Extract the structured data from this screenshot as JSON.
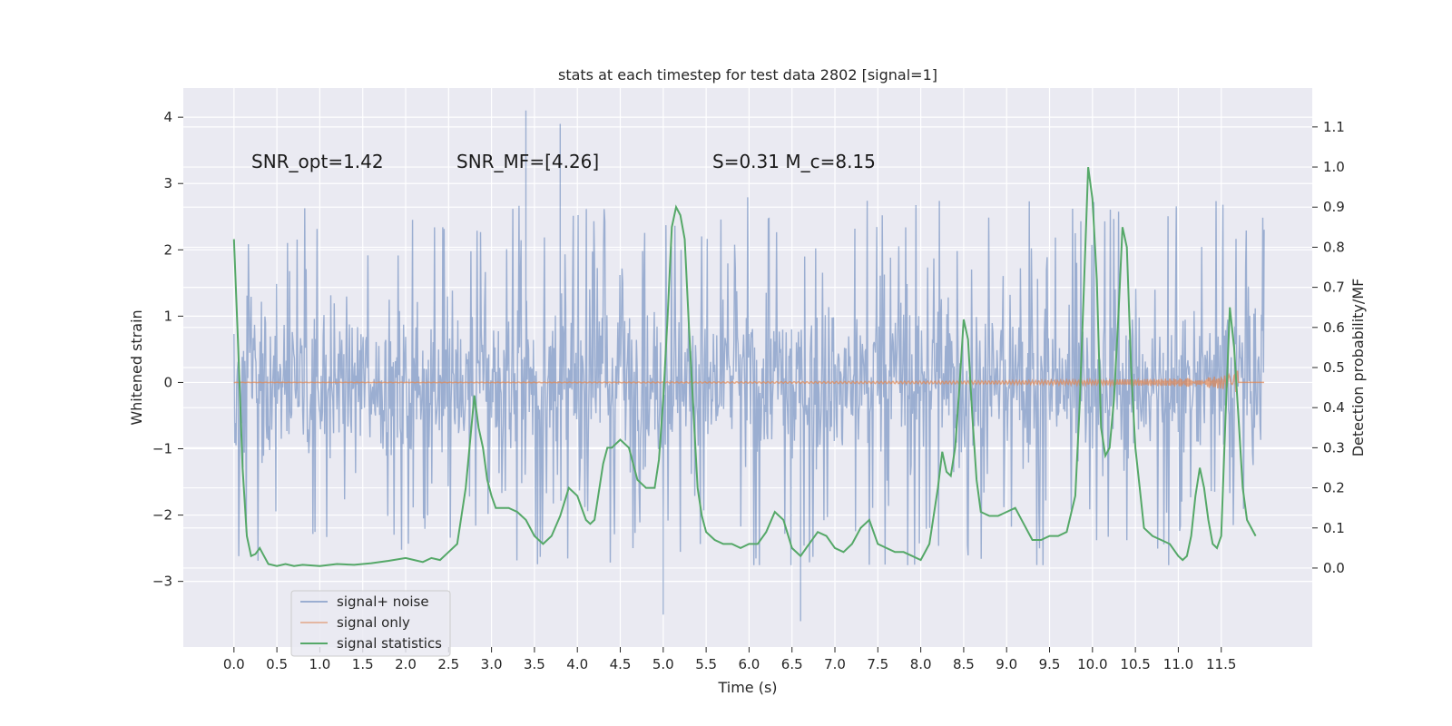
{
  "chart_data": {
    "type": "line",
    "title": "stats at each timestep for test data 2802 [signal=1]",
    "xlabel": "Time (s)",
    "ylabel_left": "Whitened strain",
    "ylabel_right": "Detection probability/MF",
    "xlim": [
      -0.59,
      12.56
    ],
    "ylim_left": [
      -3.99,
      4.44
    ],
    "ylim_right": [
      -0.197,
      1.197
    ],
    "x_ticks": [
      0.0,
      0.5,
      1.0,
      1.5,
      2.0,
      2.5,
      3.0,
      3.5,
      4.0,
      4.5,
      5.0,
      5.5,
      6.0,
      6.5,
      7.0,
      7.5,
      8.0,
      8.5,
      9.0,
      9.5,
      10.0,
      10.5,
      11.0,
      11.5
    ],
    "x_tick_labels": [
      "0.0",
      "0.5",
      "1.0",
      "1.5",
      "2.0",
      "2.5",
      "3.0",
      "3.5",
      "4.0",
      "4.5",
      "5.0",
      "5.5",
      "6.0",
      "6.5",
      "7.0",
      "7.5",
      "8.0",
      "8.5",
      "9.0",
      "9.5",
      "10.0",
      "10.5",
      "11.0",
      "11.5"
    ],
    "y_left_ticks": [
      -3,
      -2,
      -1,
      0,
      1,
      2,
      3,
      4
    ],
    "y_left_tick_labels": [
      "−3",
      "−2",
      "−1",
      "0",
      "1",
      "2",
      "3",
      "4"
    ],
    "y_right_ticks": [
      0.0,
      0.1,
      0.2,
      0.3,
      0.4,
      0.5,
      0.6,
      0.7,
      0.8,
      0.9,
      1.0,
      1.1
    ],
    "y_right_tick_labels": [
      "0.0",
      "0.1",
      "0.2",
      "0.3",
      "0.4",
      "0.5",
      "0.6",
      "0.7",
      "0.8",
      "0.9",
      "1.0",
      "1.1"
    ],
    "grid": true,
    "legend_position": "lower-left",
    "annotations": [
      {
        "text": "SNR_opt=1.42",
        "x": 0.2,
        "y": 3.3
      },
      {
        "text": "SNR_MF=[4.26]",
        "x": 2.6,
        "y": 3.3
      },
      {
        "text": "S=0.31   M_c=8.15",
        "x": 5.6,
        "y": 3.3
      }
    ],
    "series": [
      {
        "name": "signal+ noise",
        "axis": "left",
        "color": "#4c72b0",
        "alpha": 0.5,
        "x_range": [
          0.0,
          12.0
        ],
        "envelope": {
          "typical_half_range": 1.45,
          "max_peak": 4.1,
          "min_trough": -3.6
        }
      },
      {
        "name": "signal only",
        "axis": "left",
        "color": "#dd8452",
        "alpha": 0.5,
        "x_range": [
          0.0,
          12.0
        ],
        "chirp_amplitude_end": 0.18,
        "chirp_end_time": 11.7
      },
      {
        "name": "signal statistics",
        "axis": "right",
        "color": "#55a868",
        "x": [
          0.0,
          0.05,
          0.1,
          0.15,
          0.2,
          0.25,
          0.3,
          0.35,
          0.4,
          0.5,
          0.6,
          0.7,
          0.8,
          1.0,
          1.2,
          1.4,
          1.6,
          1.8,
          2.0,
          2.1,
          2.2,
          2.3,
          2.4,
          2.5,
          2.6,
          2.7,
          2.8,
          2.85,
          2.9,
          2.95,
          3.0,
          3.05,
          3.1,
          3.2,
          3.3,
          3.4,
          3.5,
          3.6,
          3.7,
          3.8,
          3.9,
          4.0,
          4.05,
          4.1,
          4.15,
          4.2,
          4.3,
          4.35,
          4.4,
          4.5,
          4.6,
          4.7,
          4.8,
          4.85,
          4.9,
          4.95,
          5.0,
          5.05,
          5.1,
          5.15,
          5.2,
          5.25,
          5.3,
          5.35,
          5.4,
          5.45,
          5.5,
          5.6,
          5.7,
          5.8,
          5.9,
          6.0,
          6.1,
          6.2,
          6.3,
          6.4,
          6.5,
          6.6,
          6.7,
          6.8,
          6.9,
          7.0,
          7.1,
          7.2,
          7.3,
          7.4,
          7.5,
          7.6,
          7.7,
          7.8,
          7.9,
          8.0,
          8.1,
          8.15,
          8.2,
          8.25,
          8.3,
          8.35,
          8.4,
          8.45,
          8.5,
          8.55,
          8.6,
          8.65,
          8.7,
          8.8,
          8.9,
          9.0,
          9.1,
          9.2,
          9.3,
          9.4,
          9.5,
          9.6,
          9.7,
          9.8,
          9.85,
          9.9,
          9.95,
          10.0,
          10.05,
          10.1,
          10.15,
          10.2,
          10.25,
          10.3,
          10.35,
          10.4,
          10.45,
          10.5,
          10.55,
          10.6,
          10.7,
          10.8,
          10.9,
          11.0,
          11.05,
          11.1,
          11.15,
          11.2,
          11.25,
          11.3,
          11.35,
          11.4,
          11.45,
          11.5,
          11.55,
          11.6,
          11.65,
          11.7,
          11.75,
          11.8,
          11.9
        ],
        "y": [
          0.82,
          0.55,
          0.25,
          0.08,
          0.03,
          0.035,
          0.05,
          0.03,
          0.01,
          0.005,
          0.01,
          0.005,
          0.008,
          0.005,
          0.01,
          0.008,
          0.012,
          0.018,
          0.025,
          0.02,
          0.015,
          0.025,
          0.02,
          0.04,
          0.06,
          0.2,
          0.43,
          0.35,
          0.3,
          0.22,
          0.18,
          0.15,
          0.15,
          0.15,
          0.14,
          0.12,
          0.08,
          0.06,
          0.08,
          0.13,
          0.2,
          0.18,
          0.15,
          0.12,
          0.11,
          0.12,
          0.26,
          0.3,
          0.3,
          0.32,
          0.3,
          0.22,
          0.2,
          0.2,
          0.2,
          0.27,
          0.42,
          0.62,
          0.85,
          0.9,
          0.88,
          0.82,
          0.6,
          0.4,
          0.2,
          0.13,
          0.09,
          0.07,
          0.06,
          0.06,
          0.05,
          0.06,
          0.06,
          0.09,
          0.14,
          0.12,
          0.05,
          0.03,
          0.06,
          0.09,
          0.08,
          0.05,
          0.04,
          0.06,
          0.1,
          0.12,
          0.06,
          0.05,
          0.04,
          0.04,
          0.03,
          0.02,
          0.06,
          0.13,
          0.2,
          0.29,
          0.24,
          0.23,
          0.3,
          0.45,
          0.62,
          0.57,
          0.38,
          0.22,
          0.14,
          0.13,
          0.13,
          0.14,
          0.15,
          0.11,
          0.07,
          0.07,
          0.08,
          0.08,
          0.09,
          0.18,
          0.4,
          0.7,
          1.0,
          0.92,
          0.72,
          0.35,
          0.28,
          0.3,
          0.42,
          0.62,
          0.85,
          0.8,
          0.5,
          0.3,
          0.2,
          0.1,
          0.08,
          0.07,
          0.06,
          0.03,
          0.02,
          0.03,
          0.08,
          0.18,
          0.25,
          0.2,
          0.12,
          0.06,
          0.05,
          0.08,
          0.38,
          0.65,
          0.55,
          0.38,
          0.2,
          0.12,
          0.08
        ]
      }
    ]
  }
}
